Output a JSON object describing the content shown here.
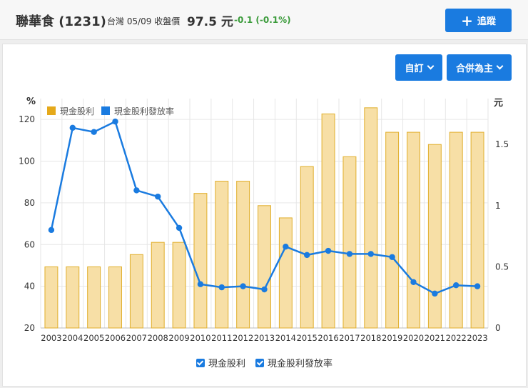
{
  "header": {
    "stock_name": "聯華食 (1231)",
    "market_date": "台灣 05/09 收盤價",
    "price": "97.5 元",
    "change": "-0.1 (-0.1%)",
    "follow_label": "追蹤"
  },
  "controls": {
    "custom_label": "自訂",
    "consolidation_label": "合併為主"
  },
  "legend": {
    "top": [
      "現金股利",
      "現金股利發放率"
    ],
    "bottom": [
      "現金股利",
      "現金股利發放率"
    ]
  },
  "colors": {
    "bar_fill": "#f7dfa6",
    "bar_stroke": "#e0ae2a",
    "bar_legend": "#e5a91b",
    "line": "#1a7be0",
    "accent": "#1a7be0",
    "change": "#3a9b3a"
  },
  "chart_data": {
    "type": "bar+line",
    "categories": [
      "2003",
      "2004",
      "2005",
      "2006",
      "2007",
      "2008",
      "2009",
      "2010",
      "2011",
      "2012",
      "2013",
      "2014",
      "2015",
      "2016",
      "2017",
      "2018",
      "2019",
      "2020",
      "2021",
      "2022",
      "2023"
    ],
    "series": [
      {
        "name": "現金股利",
        "axis": "right",
        "values": [
          0.5,
          0.5,
          0.5,
          0.5,
          0.6,
          0.7,
          0.7,
          1.1,
          1.2,
          1.2,
          1.0,
          0.9,
          1.32,
          1.75,
          1.4,
          1.8,
          1.6,
          1.6,
          1.5,
          1.6,
          1.6
        ]
      },
      {
        "name": "現金股利發放率",
        "axis": "left",
        "values": [
          67,
          116,
          114,
          119,
          86,
          83,
          68,
          41,
          39.5,
          40,
          38.5,
          59,
          55,
          57,
          55.5,
          55.5,
          54,
          42,
          36.5,
          40.5,
          40
        ]
      }
    ],
    "y_left": {
      "label": "%",
      "range": [
        20,
        130
      ],
      "ticks": [
        20,
        40,
        60,
        80,
        100,
        120
      ]
    },
    "y_right": {
      "label": "元",
      "range": [
        0,
        1.875
      ],
      "ticks": [
        "0",
        "0.5",
        "1",
        "1.5"
      ],
      "tick_values": [
        0,
        0.5,
        1,
        1.5
      ]
    },
    "grid": true,
    "legend_position": "top-left"
  }
}
